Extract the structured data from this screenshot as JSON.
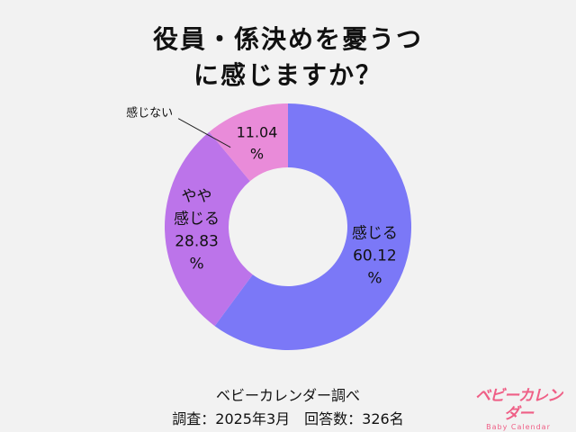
{
  "title_line1": "役員・係決めを憂うつ",
  "title_line2": "に感じますか？",
  "source": "ベビーカレンダー調べ",
  "meta": "調査：2025年3月　回答数：326名",
  "logo_text": "ベビーカレンダー",
  "logo_sub": "Baby Calendar",
  "colors": {
    "background": "#f2f2f2",
    "kanjiru": "#7b78f7",
    "yaya": "#bc74ea",
    "kanjinai": "#e98bd9"
  },
  "chart_data": {
    "type": "pie",
    "donut": true,
    "title": "役員・係決めを憂うつに感じますか？",
    "slices": [
      {
        "label": "感じる",
        "value": 60.12,
        "value_text": "60.12",
        "unit": "%",
        "color": "#7b78f7"
      },
      {
        "label": "やや感じる",
        "label_lines": [
          "やや",
          "感じる"
        ],
        "value": 28.83,
        "value_text": "28.83",
        "unit": "%",
        "color": "#bc74ea"
      },
      {
        "label": "感じない",
        "value": 11.04,
        "value_text": "11.04",
        "unit": "%",
        "color": "#e98bd9",
        "label_outside": true
      }
    ]
  }
}
